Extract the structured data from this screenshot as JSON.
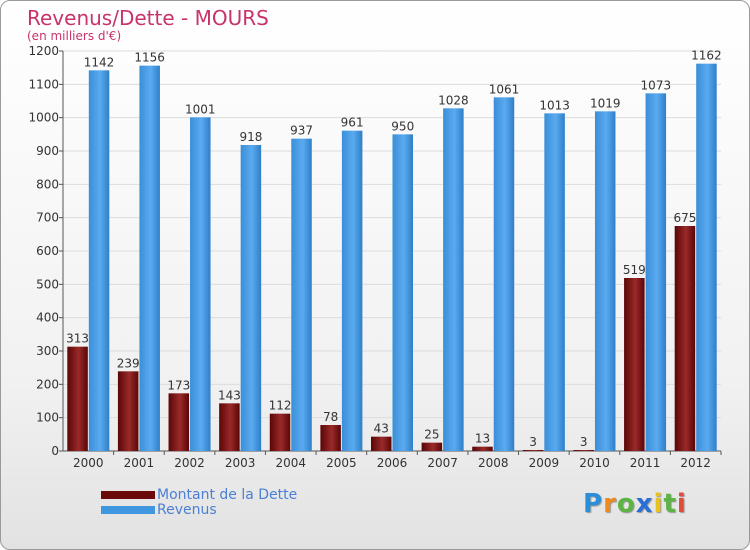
{
  "chart_title": "Revenus/Dette - MOURS",
  "chart_subtitle": "(en milliers d'€)",
  "logo": {
    "text": "Proxiti",
    "letters": [
      {
        "ch": "P",
        "color": "#2a8fd8"
      },
      {
        "ch": "r",
        "color": "#f08a1c"
      },
      {
        "ch": "o",
        "color": "#5bb443"
      },
      {
        "ch": "x",
        "color": "#2a6fd8"
      },
      {
        "ch": "i",
        "color": "#e8c21c"
      },
      {
        "ch": "t",
        "color": "#5bb443"
      },
      {
        "ch": "i",
        "color": "#e24a3a"
      }
    ]
  },
  "chart_data": {
    "type": "bar",
    "title": "Revenus/Dette - MOURS",
    "subtitle": "(en milliers d'€)",
    "xlabel": "",
    "ylabel": "",
    "ylim": [
      0,
      1200
    ],
    "yticks": [
      0,
      100,
      200,
      300,
      400,
      500,
      600,
      700,
      800,
      900,
      1000,
      1100,
      1200
    ],
    "grid": true,
    "legend_position": "bottom-left",
    "categories": [
      "2000",
      "2001",
      "2002",
      "2003",
      "2004",
      "2005",
      "2006",
      "2007",
      "2008",
      "2009",
      "2010",
      "2011",
      "2012"
    ],
    "series": [
      {
        "name": "Montant de la Dette",
        "color": "#7a1010",
        "values": [
          313,
          239,
          173,
          143,
          112,
          78,
          43,
          25,
          13,
          3,
          3,
          519,
          675
        ]
      },
      {
        "name": "Revenus",
        "color": "#3f97df",
        "values": [
          1142,
          1156,
          1001,
          918,
          937,
          961,
          950,
          1028,
          1061,
          1013,
          1019,
          1073,
          1162
        ]
      }
    ]
  }
}
